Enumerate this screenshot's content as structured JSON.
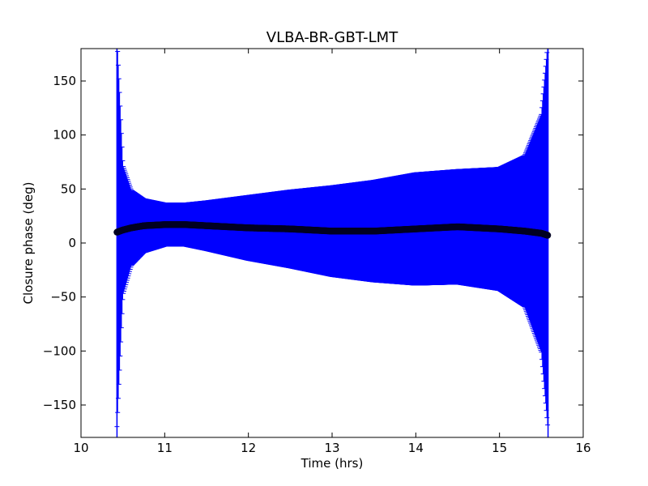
{
  "chart_data": {
    "type": "scatter",
    "title": "VLBA-BR-GBT-LMT",
    "xlabel": "Time (hrs)",
    "ylabel": "Closure phase (deg)",
    "xlim": [
      10,
      16
    ],
    "ylim": [
      -180,
      180
    ],
    "x_ticks": [
      10,
      11,
      12,
      13,
      14,
      15,
      16
    ],
    "x_tick_labels": [
      "10",
      "11",
      "12",
      "13",
      "14",
      "15",
      "16"
    ],
    "y_ticks": [
      -150,
      -100,
      -50,
      0,
      50,
      100,
      150
    ],
    "y_tick_labels": [
      "−150",
      "−100",
      "−50",
      "0",
      "50",
      "100",
      "150"
    ],
    "grid": false,
    "series": [
      {
        "marker": "circle",
        "color": "#000022",
        "errorbar_color": "#0000ff",
        "x": [
          10.43,
          10.5,
          10.6,
          10.75,
          11.0,
          11.25,
          11.5,
          12.0,
          12.5,
          13.0,
          13.5,
          14.0,
          14.5,
          15.0,
          15.3,
          15.5,
          15.58
        ],
        "y": [
          10,
          12,
          14,
          16,
          17,
          17,
          16,
          14,
          13,
          11,
          11,
          13,
          15,
          13,
          11,
          9,
          7
        ],
        "yerr": [
          180,
          60,
          35,
          25,
          20,
          20,
          23,
          30,
          36,
          42,
          47,
          52,
          53,
          57,
          70,
          110,
          180
        ]
      }
    ]
  }
}
